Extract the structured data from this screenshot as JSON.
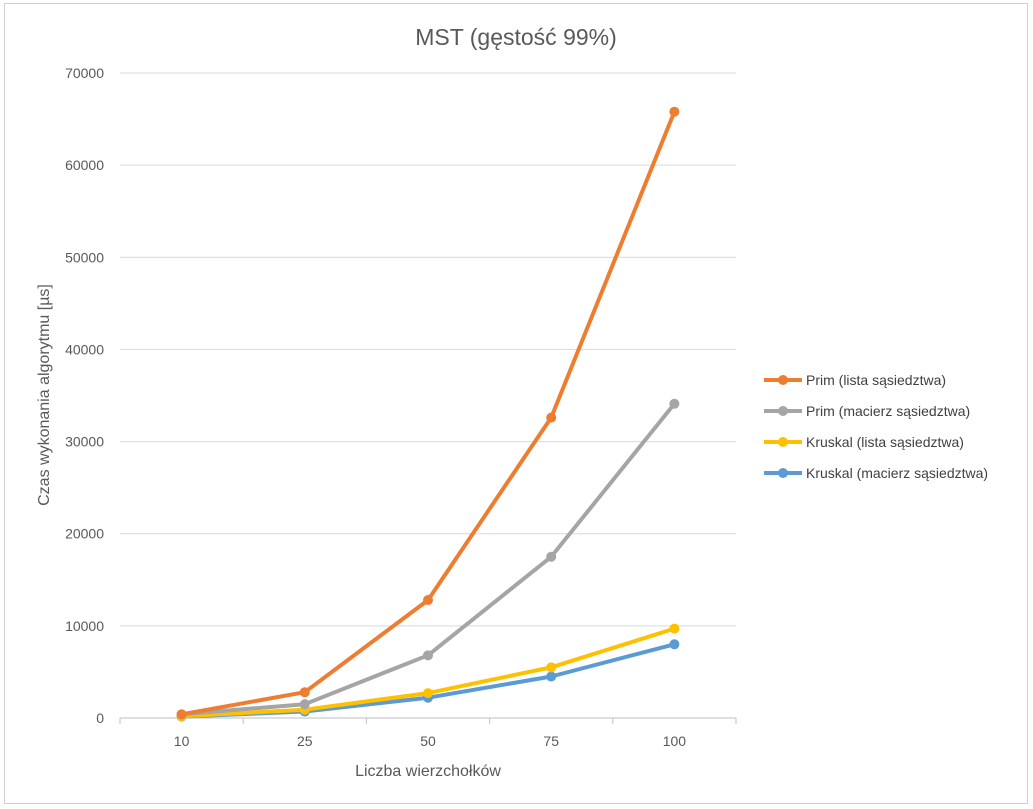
{
  "chart_data": {
    "type": "line",
    "title": "MST (gęstość 99%)",
    "xlabel": "Liczba wierzchołków",
    "ylabel": "Czas wykonania algorytmu [µs]",
    "categories": [
      "10",
      "25",
      "50",
      "75",
      "100"
    ],
    "ylim": [
      0,
      70000
    ],
    "yticks": [
      0,
      10000,
      20000,
      30000,
      40000,
      50000,
      60000,
      70000
    ],
    "grid": true,
    "legend_position": "right",
    "series": [
      {
        "name": "Prim (lista sąsiedztwa)",
        "color": "#ED7D31",
        "values": [
          400,
          2800,
          12800,
          32600,
          65800
        ]
      },
      {
        "name": "Prim (macierz sąsiedztwa)",
        "color": "#A5A5A5",
        "values": [
          400,
          1500,
          6800,
          17500,
          34100
        ]
      },
      {
        "name": "Kruskal (lista sąsiedztwa)",
        "color": "#FFC000",
        "values": [
          200,
          900,
          2700,
          5500,
          9700
        ]
      },
      {
        "name": "Kruskal (macierz sąsiedztwa)",
        "color": "#5B9BD5",
        "values": [
          150,
          700,
          2200,
          4500,
          8000
        ]
      }
    ]
  }
}
